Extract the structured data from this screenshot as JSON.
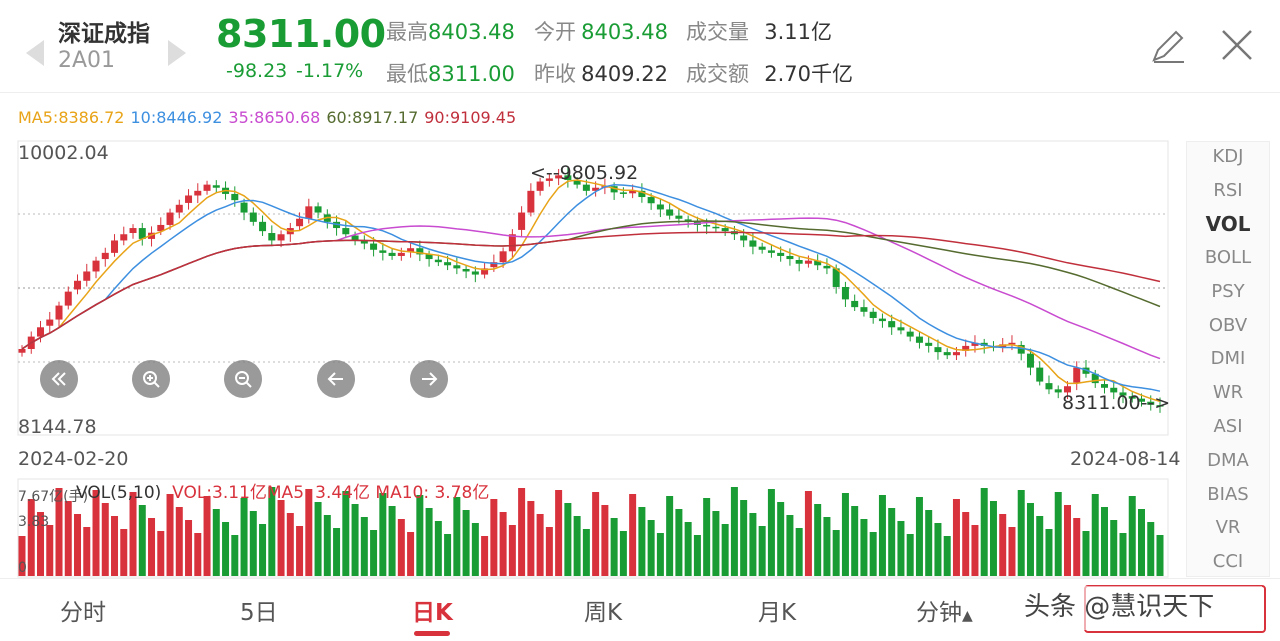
{
  "header": {
    "name": "深证成指",
    "code": "2A01",
    "price": "8311.00",
    "change": "-98.23",
    "change_pct": "-1.17%",
    "stats": {
      "high_label": "最高",
      "high": "8403.48",
      "low_label": "最低",
      "low": "8311.00",
      "open_label": "今开",
      "open": "8403.48",
      "prev_close_label": "昨收",
      "prev_close": "8409.22",
      "volume_label": "成交量",
      "volume": "3.11亿",
      "amount_label": "成交额",
      "amount": "2.70千亿"
    }
  },
  "ma_legend": {
    "ma5": "MA5:8386.72",
    "ma10": "10:8446.92",
    "ma35": "35:8650.68",
    "ma60": "60:8917.17",
    "ma90": "90:9109.45"
  },
  "chart_data": {
    "type": "candlestick",
    "y_max_label": "10002.04",
    "y_min_label": "8144.78",
    "ylim": [
      8144.78,
      10002.04
    ],
    "start_date": "2024-02-20",
    "end_date": "2024-08-14",
    "high_marker": "<--9805.92",
    "last_marker": "8311.00-->",
    "closes": [
      8680,
      8760,
      8820,
      8870,
      8960,
      9050,
      9120,
      9180,
      9250,
      9300,
      9380,
      9420,
      9460,
      9390,
      9430,
      9480,
      9560,
      9610,
      9670,
      9700,
      9740,
      9720,
      9680,
      9640,
      9560,
      9500,
      9440,
      9380,
      9420,
      9460,
      9520,
      9600,
      9560,
      9500,
      9460,
      9420,
      9380,
      9360,
      9320,
      9300,
      9280,
      9300,
      9330,
      9290,
      9260,
      9240,
      9220,
      9200,
      9180,
      9160,
      9200,
      9240,
      9310,
      9420,
      9560,
      9700,
      9760,
      9780,
      9800,
      9770,
      9740,
      9700,
      9720,
      9730,
      9690,
      9680,
      9700,
      9660,
      9620,
      9580,
      9540,
      9520,
      9500,
      9480,
      9470,
      9460,
      9440,
      9420,
      9380,
      9340,
      9320,
      9300,
      9280,
      9260,
      9230,
      9250,
      9220,
      9200,
      9080,
      9000,
      8950,
      8920,
      8880,
      8860,
      8820,
      8800,
      8760,
      8720,
      8700,
      8660,
      8640,
      8660,
      8700,
      8720,
      8700,
      8690,
      8710,
      8720,
      8650,
      8560,
      8470,
      8420,
      8400,
      8440,
      8560,
      8520,
      8460,
      8430,
      8400,
      8380,
      8360,
      8340,
      8320,
      8311
    ],
    "volume": {
      "max_label": "7.67亿(手)",
      "mid_label": "3.83",
      "zero_label": "0",
      "legend": "VOL(5,10)",
      "vol_text": "VOL:3.11亿",
      "ma5_text": "MA5: 3.44亿",
      "ma10_text": "MA10: 3.78亿"
    }
  },
  "controls": [
    "fast-back",
    "zoom-in",
    "zoom-out",
    "move-left",
    "move-right"
  ],
  "indicators": [
    "KDJ",
    "RSI",
    "VOL",
    "BOLL",
    "PSY",
    "OBV",
    "DMI",
    "WR",
    "ASI",
    "DMA",
    "BIAS",
    "VR",
    "CCI"
  ],
  "active_indicator": "VOL",
  "tabs": [
    "分时",
    "5日",
    "日K",
    "周K",
    "月K",
    "分钟"
  ],
  "active_tab": "日K",
  "watermark": "头条 @慧识天下",
  "colors": {
    "up": "#d8323c",
    "down": "#1a9c35",
    "ma5": "#e8a317",
    "ma10": "#3d8fe0",
    "ma35": "#c84bd0",
    "ma60": "#556b2f",
    "ma90": "#c0303c"
  }
}
